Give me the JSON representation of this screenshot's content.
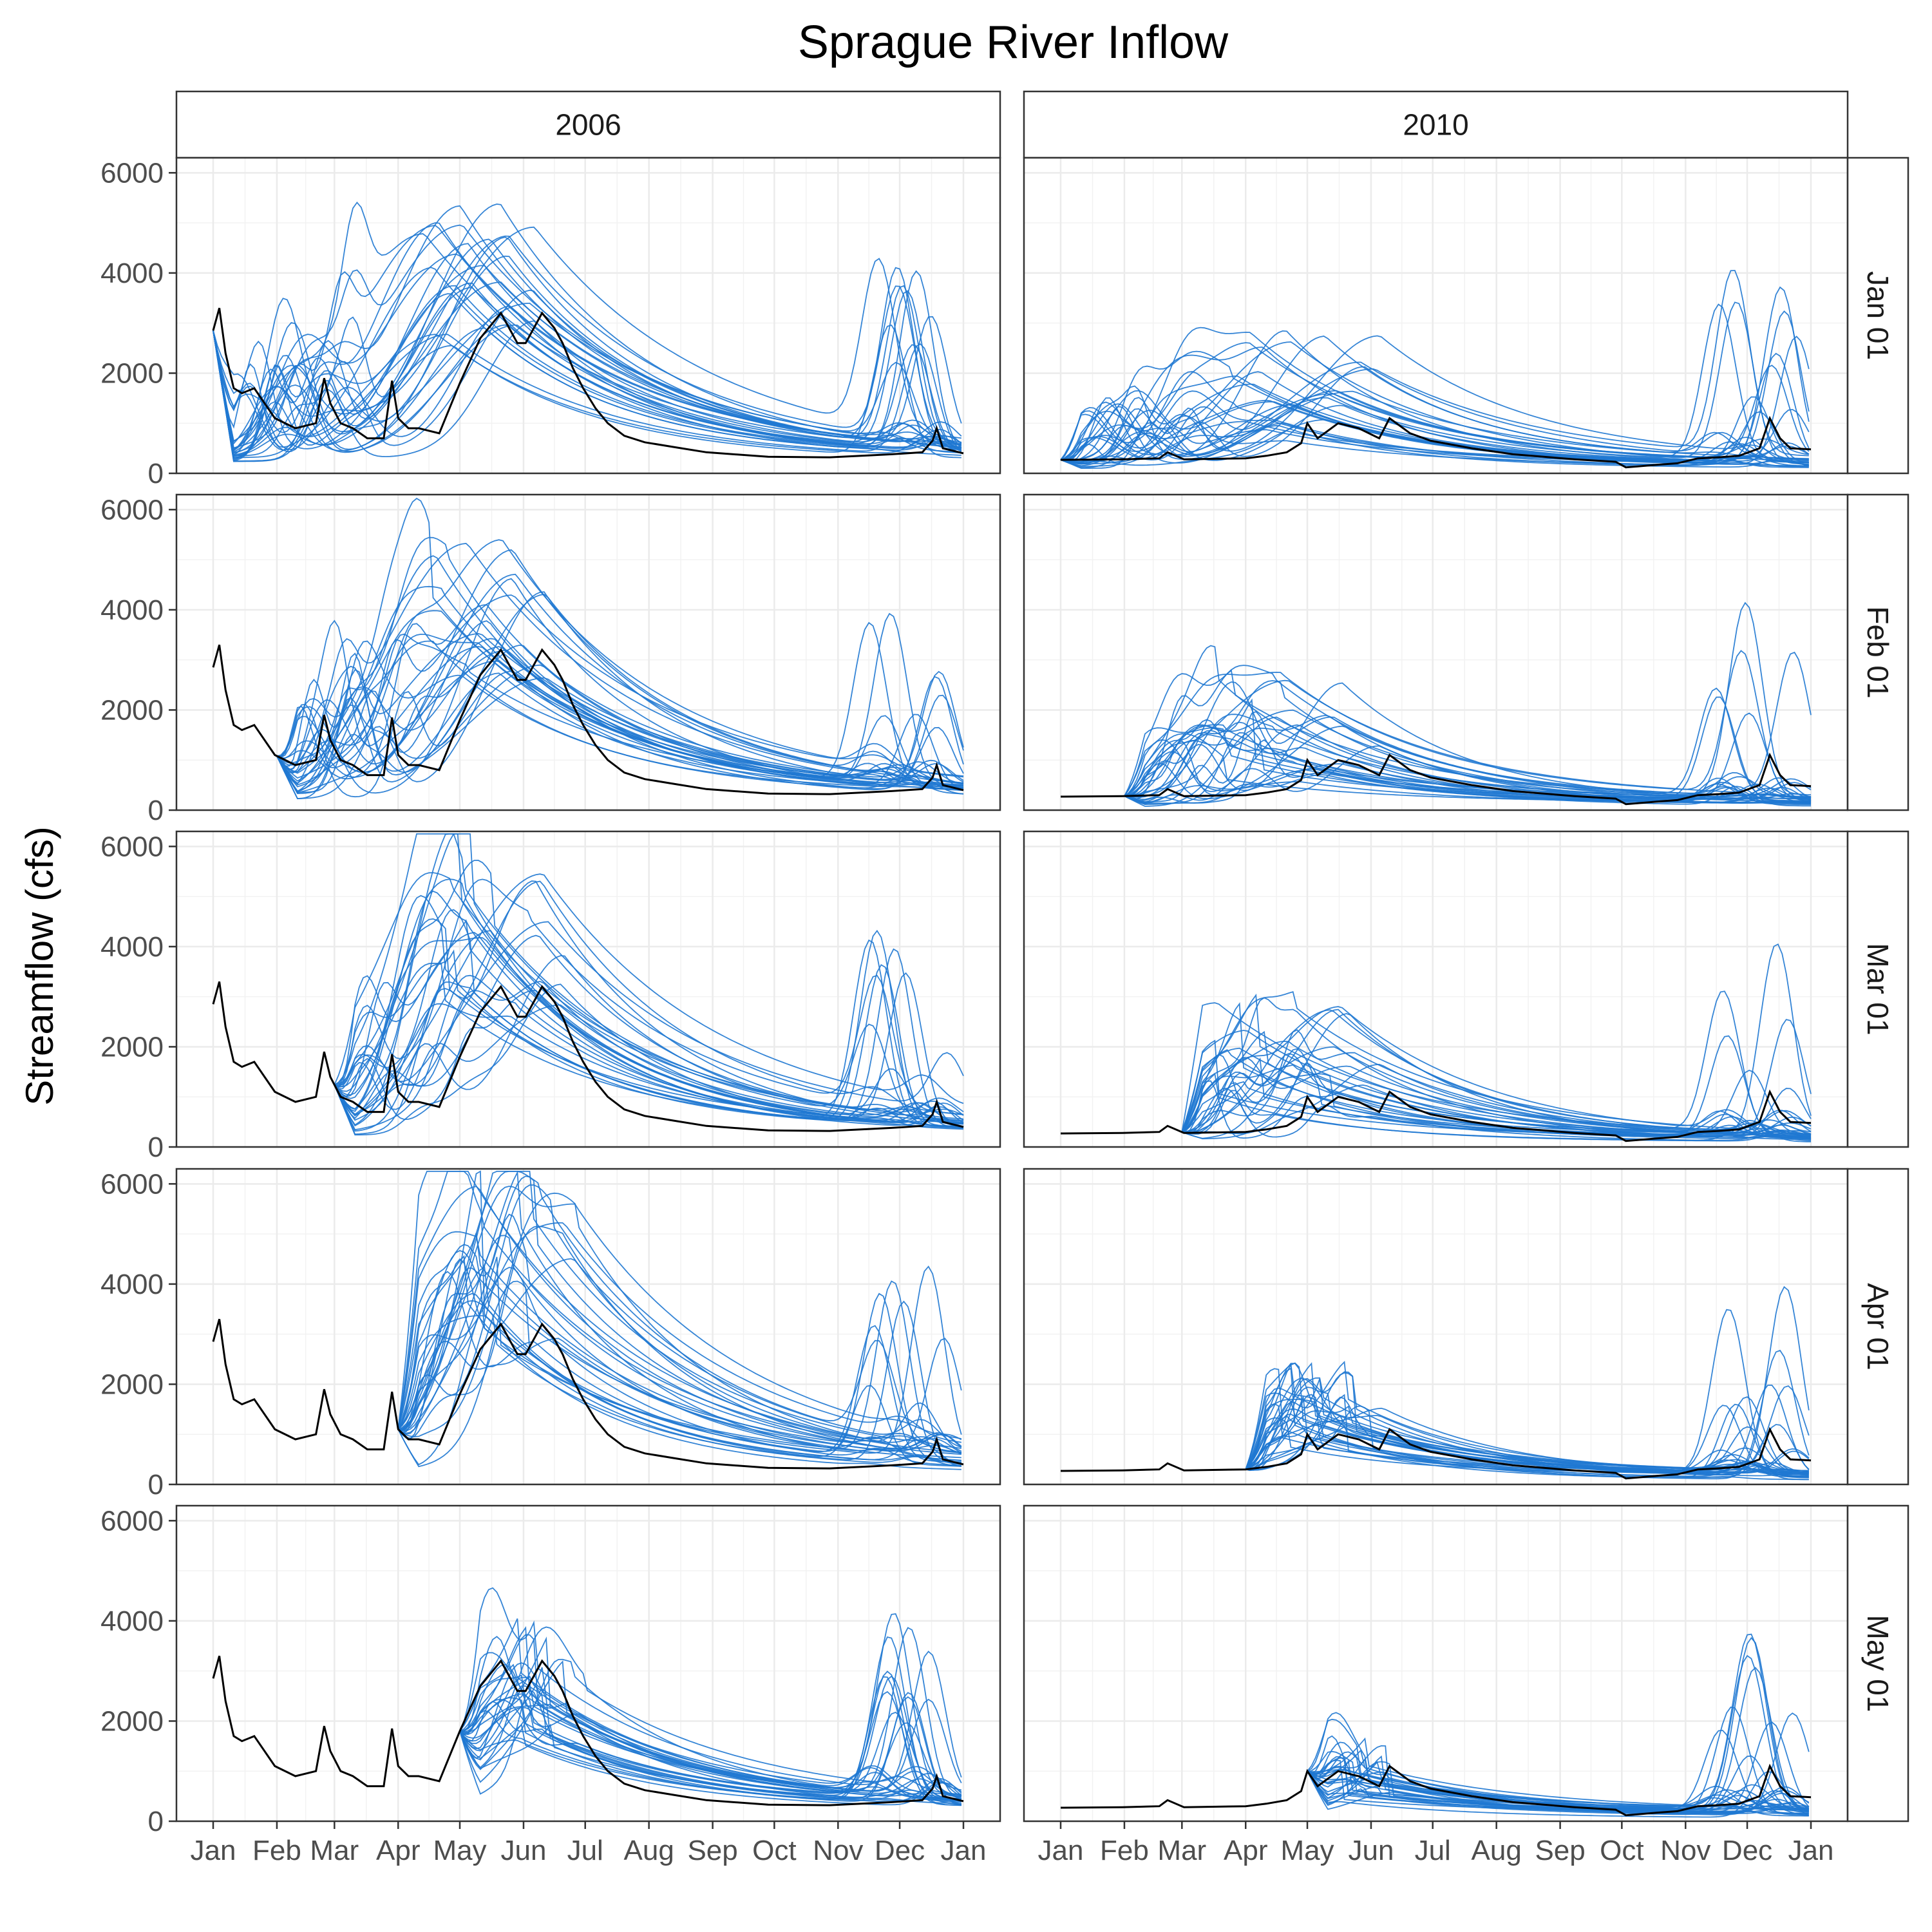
{
  "chart_data": {
    "type": "line",
    "title": "Sprague River Inflow",
    "xlabel": "",
    "ylabel": "Streamflow (cfs)",
    "x_ticks": [
      "Jan",
      "Feb",
      "Mar",
      "Apr",
      "May",
      "Jun",
      "Jul",
      "Aug",
      "Sep",
      "Oct",
      "Nov",
      "Dec",
      "Jan"
    ],
    "y_ticks": [
      0,
      2000,
      4000,
      6000
    ],
    "ylim": [
      0,
      6300
    ],
    "grid": true,
    "colors": {
      "observed": "#000000",
      "ensemble": "#1f78d1",
      "grid": "#ebebeb",
      "strip": "#ffffff",
      "border": "#333333"
    },
    "columns": [
      "2006",
      "2010"
    ],
    "rows": [
      "Jan 01",
      "Feb 01",
      "Mar 01",
      "Apr 01",
      "May 01"
    ],
    "observed": {
      "2006": {
        "x": [
          0,
          3,
          6,
          10,
          14,
          20,
          30,
          40,
          50,
          54,
          57,
          62,
          68,
          75,
          83,
          87,
          90,
          95,
          100,
          110,
          120,
          130,
          140,
          148,
          152,
          160,
          166,
          170,
          175,
          180,
          186,
          192,
          200,
          210,
          225,
          240,
          270,
          300,
          320,
          330,
          345,
          350,
          352,
          355,
          365
        ],
        "y": [
          2850,
          3300,
          2400,
          1700,
          1600,
          1700,
          1100,
          900,
          1000,
          1900,
          1400,
          1000,
          900,
          700,
          700,
          1850,
          1100,
          900,
          900,
          800,
          1800,
          2700,
          3200,
          2600,
          2600,
          3200,
          2900,
          2600,
          2100,
          1700,
          1300,
          1000,
          750,
          620,
          520,
          420,
          330,
          320,
          360,
          380,
          420,
          650,
          900,
          500,
          400
        ]
      },
      "2010": {
        "x": [
          0,
          30,
          48,
          52,
          60,
          90,
          100,
          110,
          117,
          120,
          125,
          135,
          145,
          155,
          160,
          170,
          180,
          200,
          220,
          250,
          270,
          275,
          290,
          300,
          310,
          320,
          330,
          340,
          345,
          350,
          355,
          365
        ],
        "y": [
          270,
          280,
          300,
          420,
          280,
          300,
          350,
          420,
          600,
          1000,
          700,
          1000,
          900,
          700,
          1100,
          800,
          650,
          500,
          380,
          280,
          230,
          120,
          170,
          200,
          300,
          320,
          350,
          500,
          1100,
          700,
          500,
          480
        ]
      }
    }
  }
}
